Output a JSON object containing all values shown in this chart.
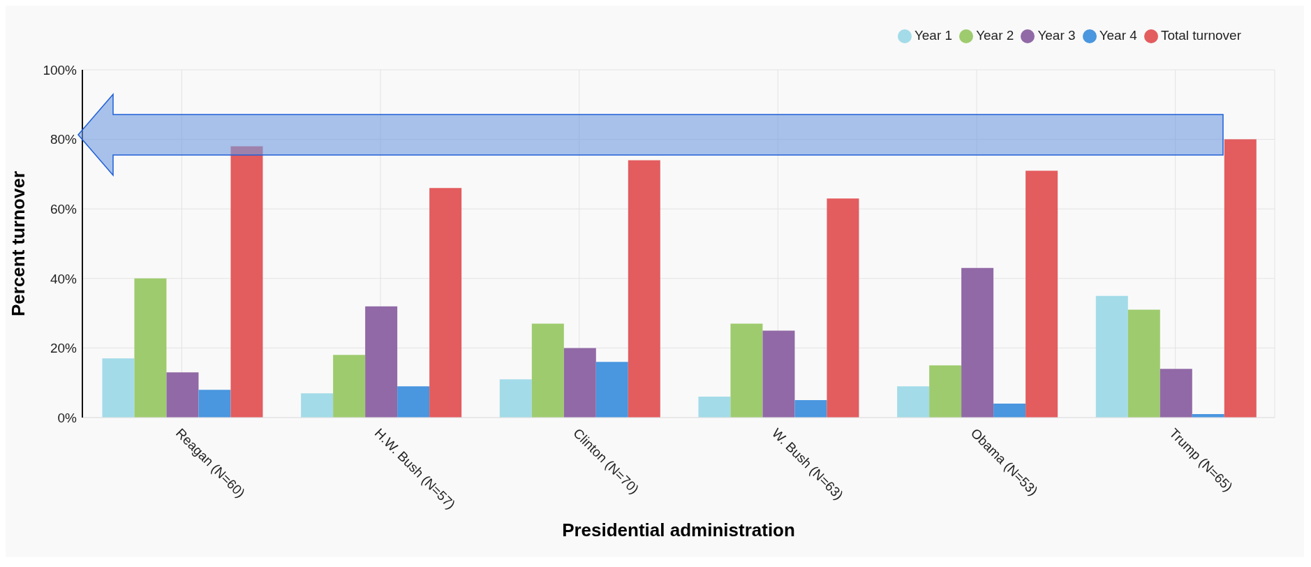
{
  "chart_data": {
    "type": "bar",
    "xlabel": "Presidential administration",
    "ylabel": "Percent turnover",
    "categories": [
      "Reagan (N=60)",
      "H.W. Bush (N=57)",
      "Clinton (N=70)",
      "W. Bush (N=63)",
      "Obama (N=53)",
      "Trump (N=65)"
    ],
    "series": [
      {
        "name": "Year 1",
        "color": "#a3dbe8",
        "values": [
          17,
          7,
          11,
          6,
          9,
          35
        ]
      },
      {
        "name": "Year 2",
        "color": "#9ecb6e",
        "values": [
          40,
          18,
          27,
          27,
          15,
          31
        ]
      },
      {
        "name": "Year 3",
        "color": "#9169a6",
        "values": [
          13,
          32,
          20,
          25,
          43,
          14
        ]
      },
      {
        "name": "Year 4",
        "color": "#4a96df",
        "values": [
          8,
          9,
          16,
          5,
          4,
          1
        ]
      },
      {
        "name": "Total turnover",
        "color": "#e35c5e",
        "values": [
          78,
          66,
          74,
          63,
          71,
          80
        ]
      }
    ],
    "ylim": [
      0,
      100
    ],
    "yticks": [
      {
        "value": 0,
        "label": "0%"
      },
      {
        "value": 20,
        "label": "20%"
      },
      {
        "value": 40,
        "label": "40%"
      },
      {
        "value": 60,
        "label": "60%"
      },
      {
        "value": 80,
        "label": "80%"
      },
      {
        "value": 100,
        "label": "100%"
      }
    ],
    "grid": true,
    "legend": "top right"
  }
}
